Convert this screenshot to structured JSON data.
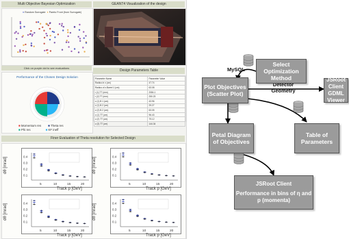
{
  "dashboard": {
    "moo_title": "Multi Objective Bayesian Optimization",
    "geant_title": "GEANT4 Visualization of the design",
    "legend_random": "Random Surrogate",
    "legend_pareto": "Pareto Front (from Surrogate)",
    "click_hint": "Click on purple dot to see evaluations",
    "params_title": "Design Parameters Table",
    "params_header": [
      "Parameter Name",
      "Parameter Value"
    ],
    "params_rows": [
      [
        "Radius in x (cm)",
        "47.74"
      ],
      [
        "Radius of z-Barrel 1 (cm)",
        "63.08"
      ],
      [
        "r (1) TT (mm)",
        "2084.1"
      ],
      [
        "r (2) TT (mm)",
        "250.23"
      ],
      [
        "z (1) B 1 (cm)",
        "43.96"
      ],
      [
        "z (1) B 2 (cm)",
        "29.27"
      ],
      [
        "z (2) B 2 (cm)",
        "63.05"
      ],
      [
        "z (1) TT (cm)",
        "96.43"
      ],
      [
        "z (2) TT (cm)",
        "79.12"
      ],
      [
        "z (3) TT (cm)",
        "144.34"
      ]
    ],
    "performance_title": "Performance of the Chosen Design Solution",
    "petal_legend": [
      "Momentum res",
      "Theta res",
      "Phi res",
      "KF ineff"
    ],
    "petal_colors": [
      "#e53935",
      "#1e3a8a",
      "#00b08a",
      "#29b6f6"
    ],
    "finer_title": "Finer Evaluation of Theta resolution for Selected Design",
    "plot_ylabel": "dθ [mrad]",
    "plot_xlabel": "Track p [GeV]",
    "plot_ticks_x": [
      "5",
      "10",
      "15",
      "20"
    ],
    "plot_ticks_y": [
      "0.4",
      "0.3",
      "0.2",
      "0.1"
    ]
  },
  "diagram": {
    "select": "Select Optimization Method",
    "mysql": "MySQL",
    "plot_objectives": "Plot Objectives (Scatter Plot)",
    "visualizing": "Visualizing Detector Geometry",
    "jsroot_gdml": "JSRoot Client GDML Viewer",
    "petal": "Petal Diagram of Objectives",
    "table": "Table of Parameters",
    "jsroot_perf_title": "JSRoot Client",
    "jsroot_perf_body": "Performance in bins of η and  p (momenta)"
  }
}
